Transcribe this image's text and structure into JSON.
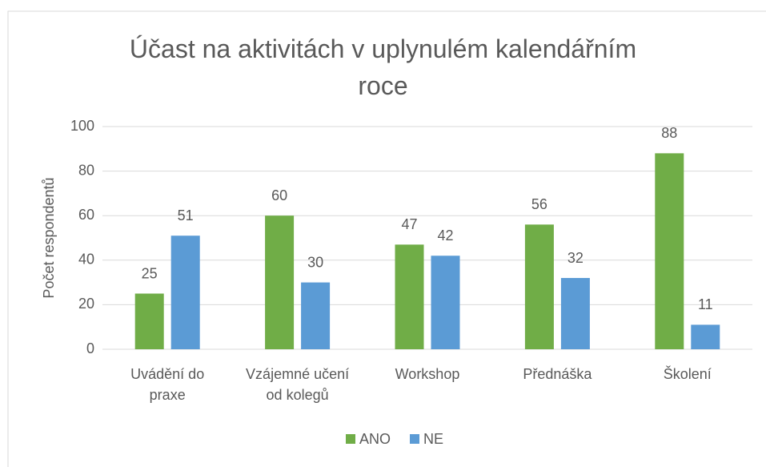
{
  "chart_data": {
    "type": "bar",
    "title": "Účast na aktivitách v uplynulém kalendářním\nroce",
    "y_label": "Počet respondentů",
    "categories": [
      "Uvádění do\npraxe",
      "Vzájemné učení\nod kolegů",
      "Workshop",
      "Přednáška",
      "Školení"
    ],
    "series": [
      {
        "name": "ANO",
        "color": "#70ad47",
        "values": [
          25,
          60,
          47,
          56,
          88
        ]
      },
      {
        "name": "NE",
        "color": "#5b9bd5",
        "values": [
          51,
          30,
          42,
          32,
          11
        ]
      }
    ],
    "ylim": [
      0,
      100
    ],
    "yticks": [
      0,
      20,
      40,
      60,
      80,
      100
    ],
    "grid": true,
    "legend": "bottom"
  }
}
